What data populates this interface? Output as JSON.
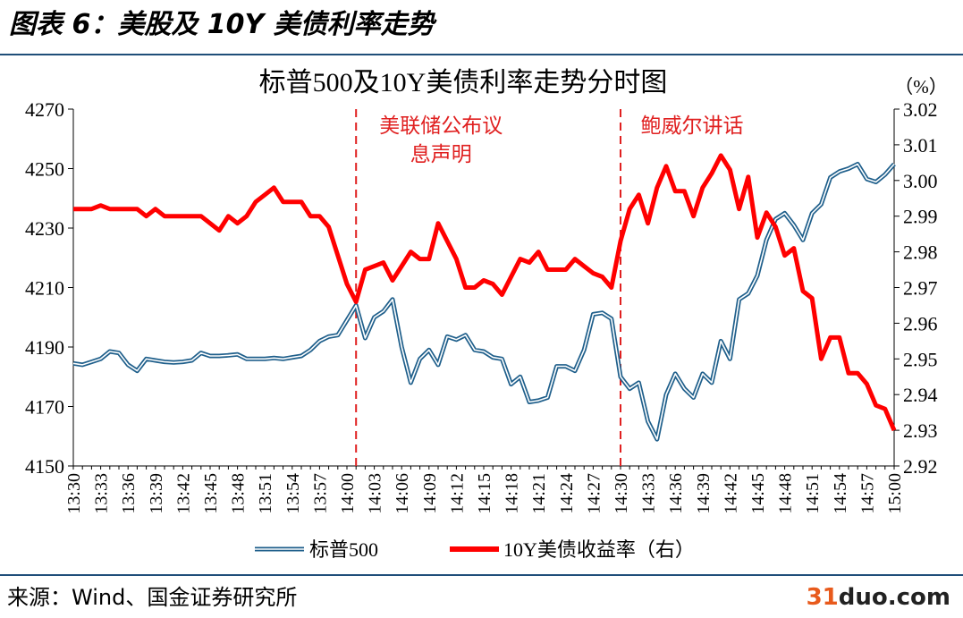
{
  "header": {
    "title": "图表 6：美股及 10Y 美债利率走势"
  },
  "footer": {
    "source": "来源：Wind、国金证券研究所"
  },
  "watermark": {
    "prefix": "31",
    "name": "duo.com"
  },
  "colors": {
    "sp500": "#1f5f8b",
    "yield": "#ff0000",
    "annotation": "#e02020",
    "rule": "#1f4e79"
  },
  "chart_data": {
    "type": "line",
    "title": "标普500及10Y美债利率走势分时图",
    "right_unit": "（%）",
    "x": [
      "13:30",
      "13:31",
      "13:32",
      "13:33",
      "13:34",
      "13:35",
      "13:36",
      "13:37",
      "13:38",
      "13:39",
      "13:40",
      "13:41",
      "13:42",
      "13:43",
      "13:44",
      "13:45",
      "13:46",
      "13:47",
      "13:48",
      "13:49",
      "13:50",
      "13:51",
      "13:52",
      "13:53",
      "13:54",
      "13:55",
      "13:56",
      "13:57",
      "13:58",
      "13:59",
      "14:00",
      "14:01",
      "14:02",
      "14:03",
      "14:04",
      "14:05",
      "14:06",
      "14:07",
      "14:08",
      "14:09",
      "14:10",
      "14:11",
      "14:12",
      "14:13",
      "14:14",
      "14:15",
      "14:16",
      "14:17",
      "14:18",
      "14:19",
      "14:20",
      "14:21",
      "14:22",
      "14:23",
      "14:24",
      "14:25",
      "14:26",
      "14:27",
      "14:28",
      "14:29",
      "14:30",
      "14:31",
      "14:32",
      "14:33",
      "14:34",
      "14:35",
      "14:36",
      "14:37",
      "14:38",
      "14:39",
      "14:40",
      "14:41",
      "14:42",
      "14:43",
      "14:44",
      "14:45",
      "14:46",
      "14:47",
      "14:48",
      "14:49",
      "14:50",
      "14:51",
      "14:52",
      "14:53",
      "14:54",
      "14:55",
      "14:56",
      "14:57",
      "14:58",
      "14:59",
      "15:00"
    ],
    "x_tick_labels": [
      "13:30",
      "13:33",
      "13:36",
      "13:39",
      "13:42",
      "13:45",
      "13:48",
      "13:51",
      "13:54",
      "13:57",
      "14:00",
      "14:03",
      "14:06",
      "14:09",
      "14:12",
      "14:15",
      "14:18",
      "14:21",
      "14:24",
      "14:27",
      "14:30",
      "14:33",
      "14:36",
      "14:39",
      "14:42",
      "14:45",
      "14:48",
      "14:51",
      "14:54",
      "14:57",
      "15:00"
    ],
    "y_left": {
      "ticks": [
        4150,
        4170,
        4190,
        4210,
        4230,
        4250,
        4270
      ],
      "range": [
        4150,
        4270
      ]
    },
    "y_right": {
      "ticks": [
        "2.92",
        "2.93",
        "2.94",
        "2.95",
        "2.96",
        "2.97",
        "2.98",
        "2.99",
        "3.00",
        "3.01",
        "3.02"
      ],
      "range": [
        2.92,
        3.02
      ]
    },
    "series": [
      {
        "name": "标普500",
        "axis": "left",
        "values": [
          4184.5,
          4184,
          4185,
          4186,
          4188.5,
          4188,
          4184,
          4182,
          4186,
          4185.5,
          4185,
          4184.8,
          4185,
          4185.5,
          4188,
          4187,
          4187,
          4187.2,
          4187.5,
          4186,
          4186,
          4186,
          4186.3,
          4186,
          4186.5,
          4187,
          4189,
          4192,
          4193.5,
          4194,
          4199,
          4204,
          4193,
          4200,
          4202,
          4206,
          4190,
          4178,
          4186,
          4189,
          4184,
          4193.5,
          4192.5,
          4194,
          4189,
          4188.5,
          4186.5,
          4186,
          4177.5,
          4180,
          4171.5,
          4172,
          4173,
          4183.5,
          4183.5,
          4182,
          4189,
          4201,
          4201.5,
          4199.5,
          4180,
          4176,
          4178,
          4165,
          4159,
          4174,
          4181,
          4176,
          4173,
          4181,
          4178,
          4192,
          4186,
          4206,
          4208,
          4214,
          4226,
          4233,
          4235,
          4231,
          4226,
          4235,
          4238,
          4247,
          4249,
          4250,
          4251.5,
          4246.5,
          4245.5,
          4248,
          4251.5
        ]
      },
      {
        "name": "10Y美债收益率（右）",
        "axis": "right",
        "values": [
          2.992,
          2.992,
          2.992,
          2.993,
          2.992,
          2.992,
          2.992,
          2.992,
          2.99,
          2.992,
          2.99,
          2.99,
          2.99,
          2.99,
          2.99,
          2.988,
          2.986,
          2.99,
          2.988,
          2.99,
          2.994,
          2.996,
          2.998,
          2.994,
          2.994,
          2.994,
          2.99,
          2.99,
          2.987,
          2.979,
          2.971,
          2.966,
          2.975,
          2.976,
          2.977,
          2.972,
          2.976,
          2.98,
          2.978,
          2.978,
          2.988,
          2.983,
          2.978,
          2.97,
          2.97,
          2.972,
          2.971,
          2.968,
          2.973,
          2.978,
          2.977,
          2.98,
          2.975,
          2.975,
          2.975,
          2.978,
          2.976,
          2.974,
          2.973,
          2.97,
          2.983,
          2.992,
          2.996,
          2.988,
          2.998,
          3.004,
          2.997,
          2.997,
          2.99,
          2.998,
          3.002,
          3.007,
          3.003,
          2.992,
          3.001,
          2.984,
          2.991,
          2.987,
          2.979,
          2.981,
          2.969,
          2.967,
          2.95,
          2.956,
          2.956,
          2.946,
          2.946,
          2.943,
          2.937,
          2.936,
          2.93
        ]
      }
    ],
    "annotations": [
      {
        "at": "14:01",
        "text": [
          "美联储公布议",
          "息声明"
        ]
      },
      {
        "at": "14:30",
        "text": [
          "鲍威尔讲话"
        ]
      }
    ],
    "legend": "bottom-center",
    "grid": false
  }
}
